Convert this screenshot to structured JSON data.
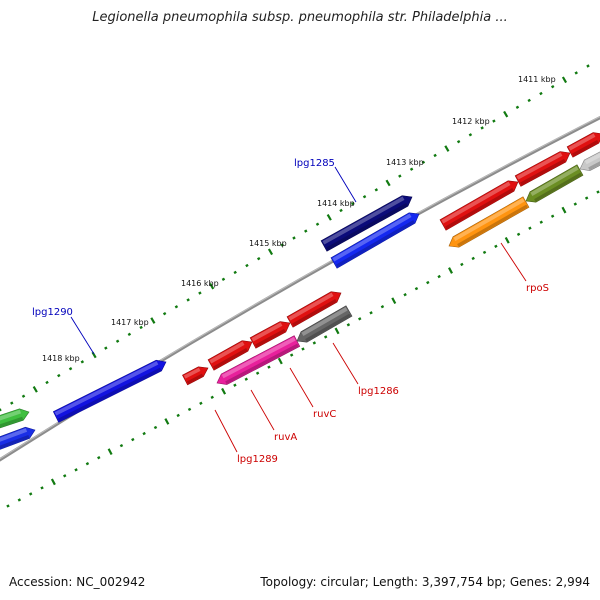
{
  "title": "Legionella pneumophila subsp. pneumophila str. Philadelphia ...",
  "accession": "Accession: NC_002942",
  "summary": "Topology: circular; Length: 3,397,754 bp; Genes: 2,994",
  "colors": {
    "backbone": "#8c8c8c",
    "tick": "#117a11",
    "label_blue": "#0000bb",
    "label_red": "#cc0000",
    "kbp_text": "#111111"
  },
  "kbp_labels": [
    "1411 kbp",
    "1412 kbp",
    "1413 kbp",
    "1414 kbp",
    "1415 kbp",
    "1416 kbp",
    "1417 kbp",
    "1418 kbp"
  ],
  "genes": [
    {
      "id": "g-green",
      "color": "#3fbf3f",
      "strand": "+",
      "track": "outer"
    },
    {
      "id": "g-blue-left",
      "color": "#1a2ee6",
      "strand": "+",
      "track": "inner"
    },
    {
      "id": "lpg1290",
      "color": "#1212e0",
      "strand": "+",
      "track": "outer"
    },
    {
      "id": "lpg1285",
      "color": "#0b0b7a",
      "strand": "+",
      "track": "outer"
    },
    {
      "id": "g-blue-right",
      "color": "#1428f0",
      "strand": "+",
      "track": "inner"
    },
    {
      "id": "lpg1289",
      "color": "#e01010",
      "strand": "+",
      "track": "outer"
    },
    {
      "id": "g-red-a",
      "color": "#e01010",
      "strand": "+",
      "track": "outer"
    },
    {
      "id": "g-red-b",
      "color": "#e01010",
      "strand": "+",
      "track": "outer"
    },
    {
      "id": "g-red-c",
      "color": "#e01010",
      "strand": "+",
      "track": "outer"
    },
    {
      "id": "ruvA",
      "color": "#e8209c",
      "strand": "-",
      "track": "inner"
    },
    {
      "id": "ruvC",
      "color": "#666666",
      "strand": "-",
      "track": "inner"
    },
    {
      "id": "g-red-d",
      "color": "#e01010",
      "strand": "+",
      "track": "outer"
    },
    {
      "id": "g-red-e",
      "color": "#e01010",
      "strand": "+",
      "track": "outer"
    },
    {
      "id": "g-red-f",
      "color": "#e01010",
      "strand": "+",
      "track": "outer"
    },
    {
      "id": "rpoS",
      "color": "#ff9410",
      "strand": "-",
      "track": "inner"
    },
    {
      "id": "g-olive",
      "color": "#6b8e23",
      "strand": "-",
      "track": "inner"
    },
    {
      "id": "g-grey",
      "color": "#c8c8c8",
      "strand": "-",
      "track": "inner"
    }
  ],
  "gene_labels": [
    {
      "text": "lpg1290",
      "color": "#0000bb"
    },
    {
      "text": "lpg1285",
      "color": "#0000bb"
    },
    {
      "text": "rpoS",
      "color": "#cc0000"
    },
    {
      "text": "lpg1286",
      "color": "#cc0000"
    },
    {
      "text": "ruvC",
      "color": "#cc0000"
    },
    {
      "text": "ruvA",
      "color": "#cc0000"
    },
    {
      "text": "lpg1289",
      "color": "#cc0000"
    }
  ]
}
